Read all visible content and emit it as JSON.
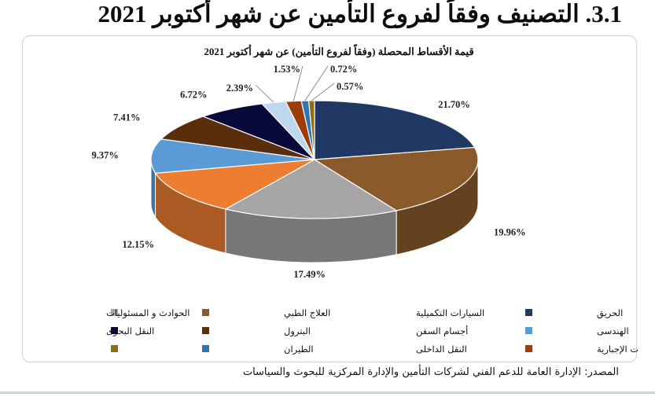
{
  "page_title": "3.1. التصنيف وفقاً لفروع التأمين عن شهر أكتوبر 2021",
  "source_note": "المصدر: الإدارة العامة للدعم الفني لشركات التأمين والإدارة المركزية للبحوث والسياسات",
  "chart_data": {
    "type": "pie",
    "style": "3d-pie",
    "title": "قيمة الأقساط المحصلة (وفقاً لفروع التأمين) عن شهر أكتوبر 2021",
    "legend_position": "bottom",
    "slices": [
      {
        "label": "الحريق",
        "value": 21.7,
        "value_label": "21.70%",
        "color": "#1f3864"
      },
      {
        "label": "السيارات التكميلية",
        "value": 19.96,
        "value_label": "19.96%",
        "color": "#8b5a2b"
      },
      {
        "label": "العلاج الطبي",
        "value": 17.49,
        "value_label": "17.49%",
        "color": "#a5a5a5"
      },
      {
        "label": "الحوادث و المسئوليات",
        "value": 12.15,
        "value_label": "12.15%",
        "color": "#ed7d31"
      },
      {
        "label": "الهندسى",
        "value": 9.37,
        "value_label": "9.37%",
        "color": "#5b9bd5"
      },
      {
        "label": "أجسام السفن",
        "value": 7.41,
        "value_label": "7.41%",
        "color": "#5a2d0c"
      },
      {
        "label": "البترول",
        "value": 6.72,
        "value_label": "6.72%",
        "color": "#0a0a3a"
      },
      {
        "label": "النقل البحرى",
        "value": 2.39,
        "value_label": "2.39%",
        "color": "#bdd7ee"
      },
      {
        "label": "السيارات الإجبارية",
        "value": 1.53,
        "value_label": "1.53%",
        "color": "#9c3d0a"
      },
      {
        "label": "النقل الداخلى",
        "value": 0.72,
        "value_label": "0.72%",
        "color": "#2e75b6"
      },
      {
        "label": "الطيران",
        "value": 0.57,
        "value_label": "0.57%",
        "color": "#8d6e10"
      }
    ]
  }
}
